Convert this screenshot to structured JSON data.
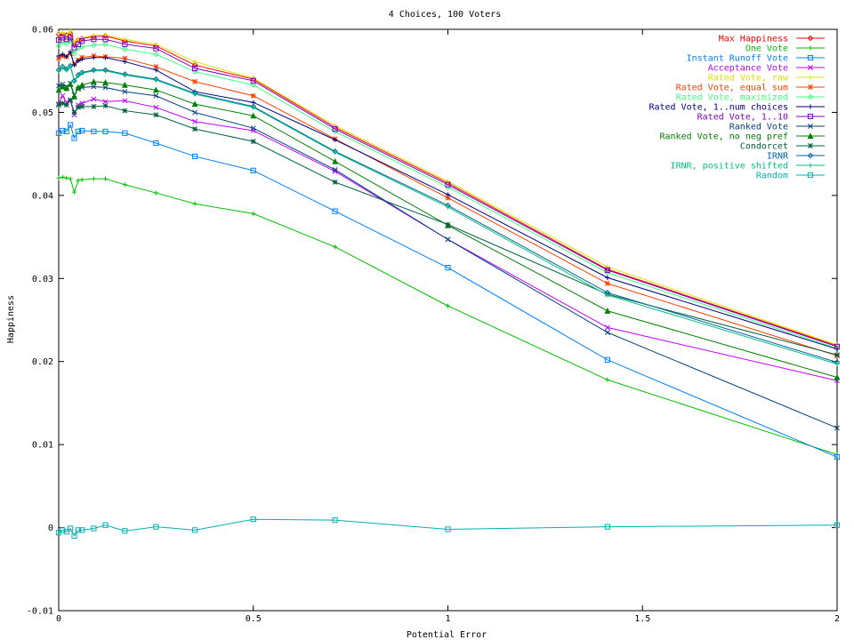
{
  "chart_data": {
    "type": "line",
    "title": "4 Choices, 100 Voters",
    "xlabel": "Potential Error",
    "ylabel": "Happiness",
    "xlim": [
      0,
      2
    ],
    "ylim": [
      -0.01,
      0.06
    ],
    "xticks": [
      {
        "value": 0,
        "label": "0"
      },
      {
        "value": 0.5,
        "label": "0.5"
      },
      {
        "value": 1,
        "label": "1"
      },
      {
        "value": 1.5,
        "label": "1.5"
      },
      {
        "value": 2,
        "label": "2"
      }
    ],
    "yticks": [
      {
        "value": -0.01,
        "label": "-0.01"
      },
      {
        "value": 0,
        "label": "0"
      },
      {
        "value": 0.01,
        "label": "0.01"
      },
      {
        "value": 0.02,
        "label": "0.02"
      },
      {
        "value": 0.03,
        "label": "0.03"
      },
      {
        "value": 0.04,
        "label": "0.04"
      },
      {
        "value": 0.05,
        "label": "0.05"
      },
      {
        "value": 0.06,
        "label": "0.06"
      }
    ],
    "grid": false,
    "legend_position": "top-right",
    "x": [
      0,
      0.01,
      0.02,
      0.03,
      0.04,
      0.05,
      0.06,
      0.09,
      0.12,
      0.17,
      0.25,
      0.35,
      0.5,
      0.71,
      1,
      1.41,
      2
    ],
    "series": [
      {
        "name": "Max Happiness",
        "color": "#ff0000",
        "marker": "diamond",
        "values": [
          0.0594,
          0.0594,
          0.0593,
          0.0595,
          0.0581,
          0.0587,
          0.0589,
          0.0591,
          0.0592,
          0.0586,
          0.058,
          0.0557,
          0.054,
          0.0482,
          0.0415,
          0.0311,
          0.0219
        ]
      },
      {
        "name": "One Vote",
        "color": "#00c000",
        "marker": "plus",
        "values": [
          0.0421,
          0.0422,
          0.0421,
          0.042,
          0.0404,
          0.0418,
          0.0419,
          0.042,
          0.042,
          0.0413,
          0.0403,
          0.039,
          0.0378,
          0.0338,
          0.0267,
          0.0178,
          0.0088
        ]
      },
      {
        "name": "Instant Runoff Vote",
        "color": "#0080ff",
        "marker": "square",
        "values": [
          0.0475,
          0.0478,
          0.0477,
          0.0485,
          0.0469,
          0.0477,
          0.0478,
          0.0477,
          0.0477,
          0.0475,
          0.0463,
          0.0447,
          0.043,
          0.0381,
          0.0313,
          0.0202,
          0.0085
        ]
      },
      {
        "name": "Acceptance Vote",
        "color": "#c000ff",
        "marker": "x",
        "values": [
          0.051,
          0.052,
          0.0512,
          0.0514,
          0.0497,
          0.0509,
          0.0511,
          0.0516,
          0.0513,
          0.0514,
          0.0506,
          0.0489,
          0.0478,
          0.0429,
          0.0347,
          0.0241,
          0.0177
        ]
      },
      {
        "name": "Rated Vote, raw",
        "color": "#e0e000",
        "marker": "plus",
        "values": [
          0.0595,
          0.0596,
          0.0592,
          0.0598,
          0.0584,
          0.0588,
          0.059,
          0.0593,
          0.0593,
          0.0588,
          0.0582,
          0.0561,
          0.0541,
          0.0484,
          0.0417,
          0.0314,
          0.022
        ]
      },
      {
        "name": "Rated Vote, equal sum",
        "color": "#ff4000",
        "marker": "star",
        "values": [
          0.0565,
          0.0568,
          0.0567,
          0.0571,
          0.0558,
          0.0563,
          0.0566,
          0.0568,
          0.0567,
          0.0565,
          0.0555,
          0.0537,
          0.052,
          0.0468,
          0.0397,
          0.0294,
          0.0207
        ]
      },
      {
        "name": "Rated Vote, maximized",
        "color": "#40ff80",
        "marker": "diamond",
        "values": [
          0.058,
          0.0585,
          0.0583,
          0.0586,
          0.0571,
          0.0577,
          0.0579,
          0.0581,
          0.0582,
          0.0576,
          0.057,
          0.0549,
          0.0533,
          0.0477,
          0.041,
          0.0307,
          0.0216
        ]
      },
      {
        "name": "Rated Vote, 1..num choices",
        "color": "#000080",
        "marker": "plus",
        "values": [
          0.0568,
          0.057,
          0.0567,
          0.0573,
          0.0557,
          0.0562,
          0.0564,
          0.0566,
          0.0566,
          0.0561,
          0.0551,
          0.0525,
          0.0512,
          0.0467,
          0.0401,
          0.0301,
          0.0215
        ]
      },
      {
        "name": "Rated Vote, 1..10",
        "color": "#8000c0",
        "marker": "square",
        "values": [
          0.0587,
          0.059,
          0.0588,
          0.059,
          0.0578,
          0.0582,
          0.0586,
          0.0588,
          0.0588,
          0.0582,
          0.0577,
          0.0553,
          0.0538,
          0.048,
          0.0413,
          0.031,
          0.0218
        ]
      },
      {
        "name": "Ranked Vote",
        "color": "#004080",
        "marker": "x",
        "values": [
          0.0532,
          0.0534,
          0.0531,
          0.0535,
          0.0521,
          0.0528,
          0.053,
          0.0531,
          0.053,
          0.0525,
          0.052,
          0.05,
          0.0481,
          0.0431,
          0.0347,
          0.0235,
          0.012
        ]
      },
      {
        "name": "Ranked Vote, no neg pref",
        "color": "#008000",
        "marker": "triangle",
        "values": [
          0.0527,
          0.0531,
          0.0529,
          0.0534,
          0.0519,
          0.053,
          0.0533,
          0.0537,
          0.0536,
          0.0533,
          0.0527,
          0.051,
          0.0496,
          0.0441,
          0.0364,
          0.0261,
          0.0181
        ]
      },
      {
        "name": "Condorcet",
        "color": "#006040",
        "marker": "star",
        "values": [
          0.0509,
          0.0511,
          0.0509,
          0.0515,
          0.05,
          0.0506,
          0.0507,
          0.0507,
          0.0508,
          0.0502,
          0.0497,
          0.048,
          0.0465,
          0.0416,
          0.0365,
          0.0281,
          0.0208
        ]
      },
      {
        "name": "IRNR",
        "color": "#0060a0",
        "marker": "diamond",
        "values": [
          0.0551,
          0.0555,
          0.0552,
          0.0556,
          0.0538,
          0.0545,
          0.0548,
          0.0551,
          0.0551,
          0.0546,
          0.054,
          0.0523,
          0.0507,
          0.0453,
          0.0388,
          0.0283,
          0.0199
        ]
      },
      {
        "name": "IRNR, positive shifted",
        "color": "#00c080",
        "marker": "plus",
        "values": [
          0.055,
          0.0554,
          0.0551,
          0.0556,
          0.0537,
          0.0544,
          0.0547,
          0.055,
          0.055,
          0.0545,
          0.0539,
          0.0522,
          0.0506,
          0.0452,
          0.0386,
          0.028,
          0.0197
        ]
      },
      {
        "name": "Random",
        "color": "#00b0b0",
        "marker": "square",
        "values": [
          -0.0006,
          -0.0003,
          -0.0005,
          -0.0001,
          -0.001,
          -0.0003,
          -0.0003,
          -0.0001,
          0.0003,
          -0.0004,
          0.0001,
          -0.0003,
          0.001,
          0.0009,
          -0.0002,
          0.0001,
          0.0003
        ]
      }
    ]
  }
}
